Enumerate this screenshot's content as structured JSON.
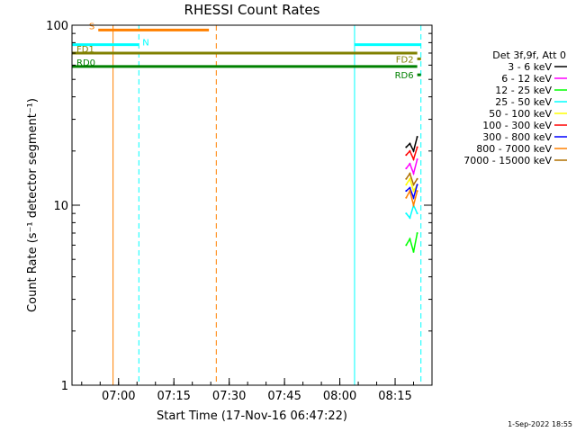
{
  "chart_data": {
    "type": "line",
    "title": "RHESSI Count Rates",
    "xlabel": "Start Time (17-Nov-16 06:47:22)",
    "ylabel": "Count Rate (s⁻¹ detector segment⁻¹)",
    "y_scale": "log",
    "ylim": [
      1,
      100
    ],
    "x_range": [
      "06:47:22",
      "08:25:00"
    ],
    "x_ticks": [
      "07:00",
      "07:15",
      "07:30",
      "07:45",
      "08:00",
      "08:15"
    ],
    "y_ticks": [
      "1",
      "10",
      "100"
    ],
    "grid": false,
    "legend_title": "Det 3f,9f, Att 0",
    "legend_placement": "right",
    "series": [
      {
        "name": "3 - 6 keV",
        "color": "#000000",
        "x": [
          "08:18:00",
          "08:19:00",
          "08:20:00",
          "08:21:00"
        ],
        "values": [
          21,
          22,
          20,
          24
        ]
      },
      {
        "name": "6 - 12 keV",
        "color": "#ff00ff",
        "x": [
          "08:18:00",
          "08:19:00",
          "08:20:00",
          "08:21:00"
        ],
        "values": [
          16,
          17,
          15,
          18
        ]
      },
      {
        "name": "12 - 25 keV",
        "color": "#00ff00",
        "x": [
          "08:18:00",
          "08:19:00",
          "08:20:00",
          "08:21:00"
        ],
        "values": [
          6,
          6.5,
          5.5,
          7
        ]
      },
      {
        "name": "25 - 50 keV",
        "color": "#00ffff",
        "x": [
          "08:18:00",
          "08:19:00",
          "08:20:00",
          "08:21:00"
        ],
        "values": [
          9,
          8.5,
          10,
          9
        ]
      },
      {
        "name": "50 - 100 keV",
        "color": "#ffff00",
        "x": [
          "08:18:00",
          "08:19:00",
          "08:20:00",
          "08:21:00"
        ],
        "values": [
          13,
          14,
          12,
          13
        ]
      },
      {
        "name": "100 - 300 keV",
        "color": "#ff0000",
        "x": [
          "08:18:00",
          "08:19:00",
          "08:20:00",
          "08:21:00"
        ],
        "values": [
          19,
          20,
          18,
          21
        ]
      },
      {
        "name": "300 - 800 keV",
        "color": "#0000ff",
        "x": [
          "08:18:00",
          "08:19:00",
          "08:20:00",
          "08:21:00"
        ],
        "values": [
          12,
          12.5,
          11,
          13
        ]
      },
      {
        "name": "800 - 7000 keV",
        "color": "#ff8000",
        "x": [
          "08:18:00",
          "08:19:00",
          "08:20:00",
          "08:21:00"
        ],
        "values": [
          11,
          12,
          10,
          12
        ]
      },
      {
        "name": "7000 - 15000 keV",
        "color": "#b07000",
        "x": [
          "08:18:00",
          "08:19:00",
          "08:20:00",
          "08:21:00"
        ],
        "values": [
          14,
          15,
          13,
          14
        ]
      }
    ],
    "bars": [
      {
        "label": "S",
        "color": "#ff8000",
        "start": "06:54:30",
        "end": "07:24:30",
        "y": 94
      },
      {
        "label": "N",
        "color": "#00ffff",
        "start": "06:47:22",
        "end": "07:05:30",
        "y": 78
      },
      {
        "label": "",
        "color": "#00ffff",
        "start": "08:04:00",
        "end": "08:22:00",
        "y": 78
      },
      {
        "label": "FD1",
        "color": "#808000",
        "start": "06:47:22",
        "end": "08:21:00",
        "y": 70
      },
      {
        "label": "FD2",
        "color": "#808000",
        "start": "08:21:00",
        "end": "08:22:00",
        "y": 65
      },
      {
        "label": "RD0",
        "color": "#008000",
        "start": "06:47:22",
        "end": "08:21:00",
        "y": 59
      },
      {
        "label": "RD6",
        "color": "#008000",
        "start": "08:21:00",
        "end": "08:22:00",
        "y": 53
      }
    ],
    "vlines": [
      {
        "time": "06:47:22",
        "color": "#00ffff",
        "style": "solid"
      },
      {
        "time": "06:58:30",
        "color": "#ff8000",
        "style": "solid"
      },
      {
        "time": "07:05:30",
        "color": "#00ffff",
        "style": "dashed"
      },
      {
        "time": "07:26:30",
        "color": "#ff8000",
        "style": "dashed"
      },
      {
        "time": "08:04:00",
        "color": "#00ffff",
        "style": "solid"
      },
      {
        "time": "08:22:00",
        "color": "#00ffff",
        "style": "dashed"
      }
    ]
  },
  "timestamp": "1-Sep-2022 18:55"
}
